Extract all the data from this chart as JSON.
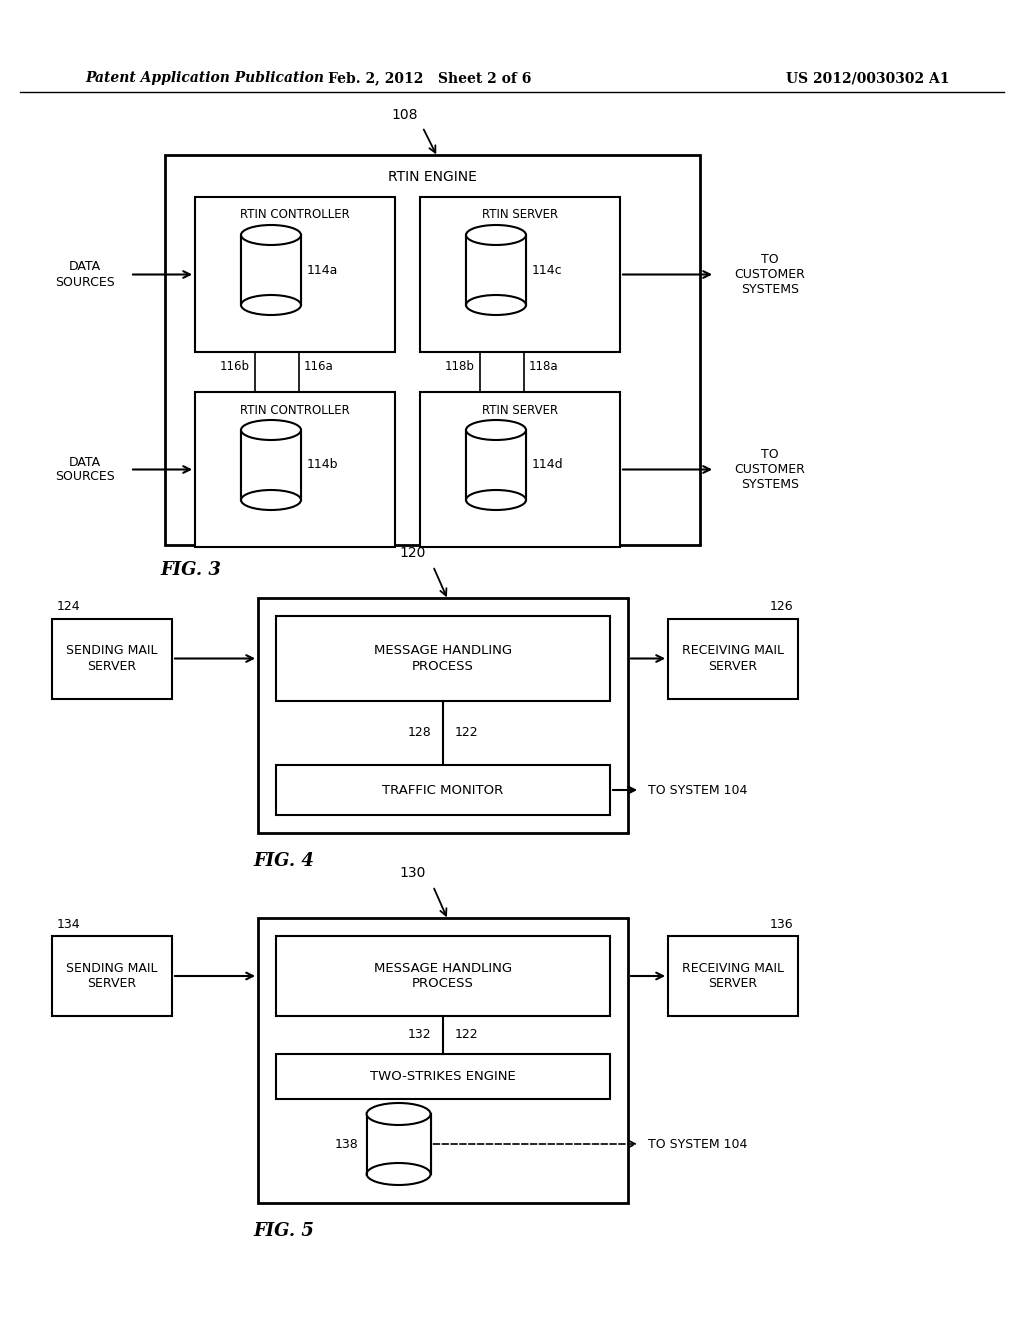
{
  "bg_color": "#ffffff",
  "header_left": "Patent Application Publication",
  "header_mid": "Feb. 2, 2012   Sheet 2 of 6",
  "header_right": "US 2012/0030302 A1",
  "fig3": {
    "label": "108",
    "fig_label": "FIG. 3"
  },
  "fig4": {
    "label": "120",
    "center_label": "MESSAGE HANDLING\nPROCESS",
    "bottom_label": "TRAFFIC MONITOR",
    "left_label": "SENDING MAIL\nSERVER",
    "left_box_label": "124",
    "right_label": "RECEIVING MAIL\nSERVER",
    "right_box_label": "126",
    "label_128": "128",
    "label_122": "122",
    "to_system": "TO SYSTEM 104",
    "fig_label": "FIG. 4"
  },
  "fig5": {
    "label": "130",
    "center_label": "MESSAGE HANDLING\nPROCESS",
    "bottom_label": "TWO-STRIKES ENGINE",
    "left_label": "SENDING MAIL\nSERVER",
    "left_box_label": "134",
    "right_label": "RECEIVING MAIL\nSERVER",
    "right_box_label": "136",
    "label_132": "132",
    "label_122": "122",
    "db_label": "138",
    "to_system": "TO SYSTEM 104",
    "fig_label": "FIG. 5"
  }
}
